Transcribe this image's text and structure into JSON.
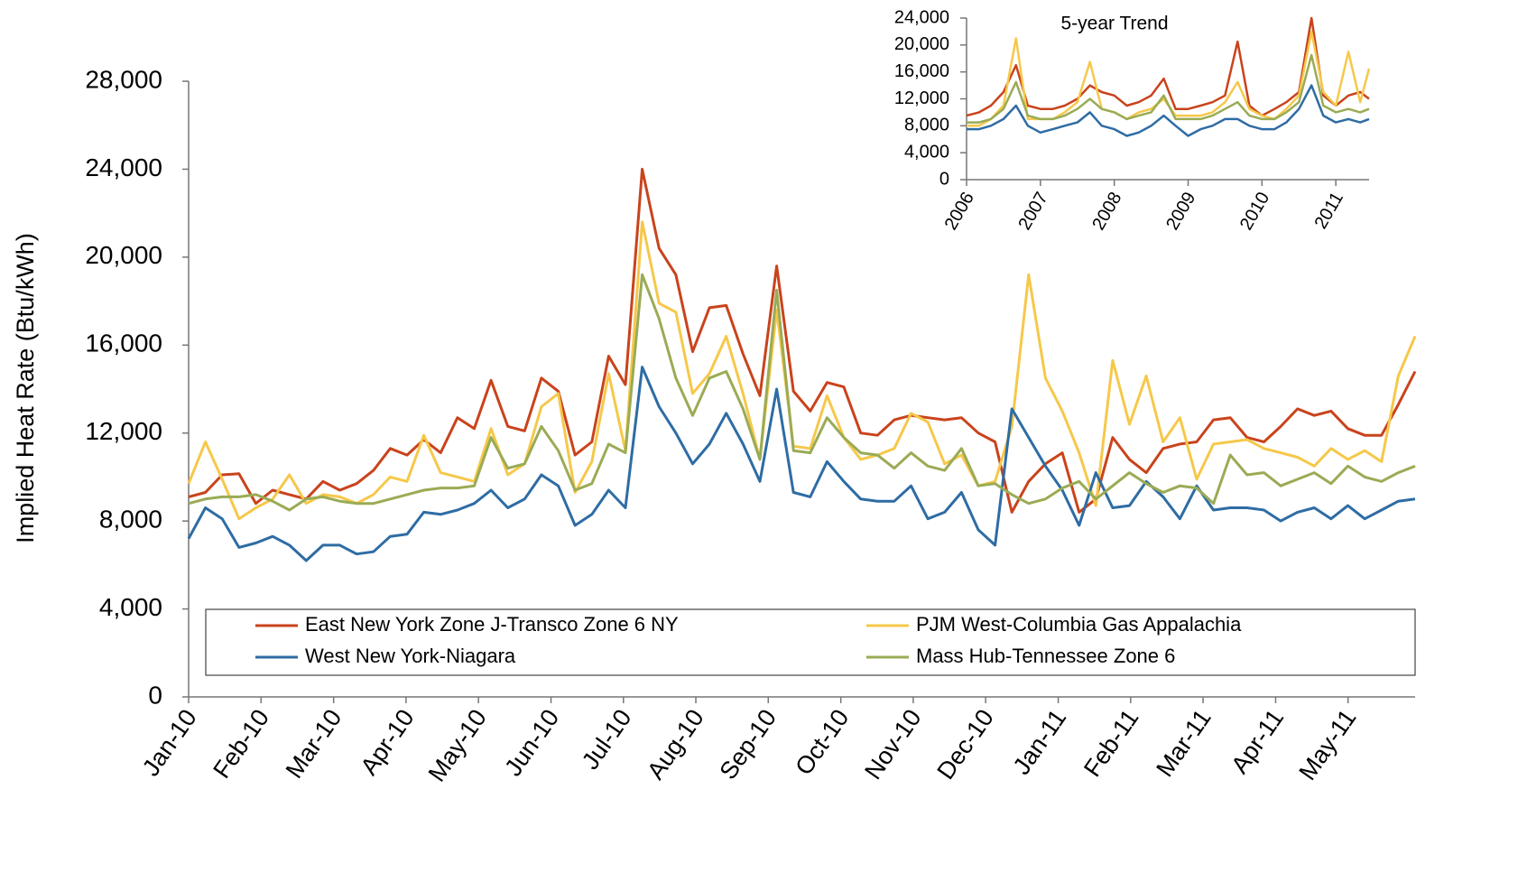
{
  "chart_data": [
    {
      "type": "line",
      "y_label": "Implied Heat Rate (Btu/kWh)",
      "x": [
        0,
        1,
        2,
        3,
        4,
        5,
        6,
        7,
        8,
        9,
        10,
        11,
        12,
        13,
        14,
        15,
        16,
        17,
        18,
        19,
        20,
        21,
        22,
        23,
        24,
        25,
        26,
        27,
        28,
        29,
        30,
        31,
        32,
        33,
        34,
        35,
        36,
        37,
        38,
        39,
        40,
        41,
        42,
        43,
        44,
        45,
        46,
        47,
        48,
        49,
        50,
        51,
        52,
        53,
        54,
        55,
        56,
        57,
        58,
        59,
        60,
        61,
        62,
        63,
        64,
        65,
        66,
        67,
        68,
        69,
        70,
        71,
        72,
        73
      ],
      "xlim": [
        0,
        73
      ],
      "xticks": [
        {
          "value": 0,
          "label": "Jan-10"
        },
        {
          "value": 4.31,
          "label": "Feb-10"
        },
        {
          "value": 8.63,
          "label": "Mar-10"
        },
        {
          "value": 12.94,
          "label": "Apr-10"
        },
        {
          "value": 17.25,
          "label": "May-10"
        },
        {
          "value": 21.57,
          "label": "Jun-10"
        },
        {
          "value": 25.88,
          "label": "Jul-10"
        },
        {
          "value": 30.19,
          "label": "Aug-10"
        },
        {
          "value": 34.5,
          "label": "Sep-10"
        },
        {
          "value": 38.82,
          "label": "Oct-10"
        },
        {
          "value": 43.13,
          "label": "Nov-10"
        },
        {
          "value": 47.44,
          "label": "Dec-10"
        },
        {
          "value": 51.76,
          "label": "Jan-11"
        },
        {
          "value": 56.07,
          "label": "Feb-11"
        },
        {
          "value": 60.38,
          "label": "Mar-11"
        },
        {
          "value": 64.7,
          "label": "Apr-11"
        },
        {
          "value": 69.01,
          "label": "May-11"
        }
      ],
      "ylim": [
        0,
        28000
      ],
      "yticks": [
        0,
        {
          "value": 4000,
          "label": "4,000"
        },
        {
          "value": 8000,
          "label": "8,000"
        },
        {
          "value": 12000,
          "label": "12,000"
        },
        {
          "value": 16000,
          "label": "16,000"
        },
        {
          "value": 20000,
          "label": "20,000"
        },
        {
          "value": 24000,
          "label": "24,000"
        },
        {
          "value": 28000,
          "label": "28,000"
        }
      ],
      "legend": true,
      "series": [
        {
          "name": "East New York Zone J-Transco Zone 6 NY",
          "color": "#c9431c",
          "values": [
            9100,
            9300,
            10100,
            10150,
            8800,
            9400,
            9200,
            9000,
            9800,
            9400,
            9700,
            10300,
            11300,
            11000,
            11700,
            11100,
            12700,
            12200,
            14400,
            12300,
            12100,
            14500,
            13900,
            11000,
            11600,
            15500,
            14200,
            24000,
            20400,
            19200,
            15700,
            17700,
            17800,
            15600,
            13700,
            19600,
            13900,
            13000,
            14300,
            14100,
            12000,
            11900,
            12600,
            12800,
            12700,
            12600,
            12700,
            12000,
            11600,
            8400,
            9800,
            10600,
            11100,
            8400,
            9000,
            11800,
            10800,
            10200,
            11300,
            11500,
            11600,
            12600,
            12700,
            11800,
            11600,
            12300,
            13100,
            12800,
            13000,
            12200,
            11900,
            11900,
            13300,
            14800
          ]
        },
        {
          "name": "PJM West-Columbia Gas Appalachia",
          "color": "#f6c84a",
          "values": [
            9700,
            11600,
            9900,
            8100,
            8600,
            9000,
            10100,
            8800,
            9200,
            9100,
            8800,
            9200,
            10000,
            9800,
            11900,
            10200,
            10000,
            9800,
            12200,
            10100,
            10600,
            13200,
            13800,
            9300,
            10700,
            14700,
            11200,
            21600,
            17900,
            17500,
            13800,
            14700,
            16400,
            13800,
            10800,
            17600,
            11400,
            11300,
            13700,
            11800,
            10800,
            11000,
            11300,
            12900,
            12500,
            10600,
            11000,
            9600,
            9800,
            12300,
            19200,
            14500,
            13000,
            11100,
            8700,
            15300,
            12400,
            14600,
            11600,
            12700,
            9900,
            11500,
            11600,
            11700,
            11300,
            11100,
            10900,
            10500,
            11300,
            10800,
            11200,
            10700,
            14600,
            16400
          ]
        },
        {
          "name": "West New York-Niagara",
          "color": "#2e6ca4",
          "values": [
            7200,
            8600,
            8100,
            6800,
            7000,
            7300,
            6900,
            6200,
            6900,
            6900,
            6500,
            6600,
            7300,
            7400,
            8400,
            8300,
            8500,
            8800,
            9400,
            8600,
            9000,
            10100,
            9600,
            7800,
            8300,
            9400,
            8600,
            15000,
            13200,
            12000,
            10600,
            11500,
            12900,
            11500,
            9800,
            14000,
            9300,
            9100,
            10700,
            9800,
            9000,
            8900,
            8900,
            9600,
            8100,
            8400,
            9300,
            7600,
            6900,
            13100,
            11800,
            10500,
            9400,
            7800,
            10200,
            8600,
            8700,
            9800,
            9100,
            8100,
            9600,
            8500,
            8600,
            8600,
            8500,
            8000,
            8400,
            8600,
            8100,
            8700,
            8100,
            8500,
            8900,
            9000
          ]
        },
        {
          "name": "Mass Hub-Tennessee Zone 6",
          "color": "#9aab55",
          "values": [
            8800,
            9000,
            9100,
            9100,
            9200,
            8900,
            8500,
            9000,
            9100,
            8900,
            8800,
            8800,
            9000,
            9200,
            9400,
            9500,
            9500,
            9600,
            11800,
            10400,
            10600,
            12300,
            11200,
            9400,
            9700,
            11500,
            11100,
            19200,
            17200,
            14500,
            12800,
            14500,
            14800,
            13100,
            10800,
            18500,
            11200,
            11100,
            12700,
            11800,
            11100,
            11000,
            10400,
            11100,
            10500,
            10300,
            11300,
            9600,
            9700,
            9200,
            8800,
            9000,
            9500,
            9800,
            9000,
            9600,
            10200,
            9700,
            9300,
            9600,
            9500,
            8800,
            11000,
            10100,
            10200,
            9600,
            9900,
            10200,
            9700,
            10500,
            10000,
            9800,
            10200,
            10500
          ]
        }
      ]
    },
    {
      "type": "line",
      "title": "5-year Trend",
      "x": [
        2006,
        2006.17,
        2006.33,
        2006.5,
        2006.67,
        2006.83,
        2007,
        2007.17,
        2007.33,
        2007.5,
        2007.67,
        2007.83,
        2008,
        2008.17,
        2008.33,
        2008.5,
        2008.67,
        2008.83,
        2009,
        2009.17,
        2009.33,
        2009.5,
        2009.67,
        2009.83,
        2010,
        2010.17,
        2010.33,
        2010.5,
        2010.67,
        2010.83,
        2011,
        2011.17,
        2011.33,
        2011.45
      ],
      "xlim": [
        2006,
        2011.45
      ],
      "xticks": [
        2006,
        2007,
        2008,
        2009,
        2010,
        2011
      ],
      "ylim": [
        0,
        24000
      ],
      "yticks": [
        0,
        {
          "value": 4000,
          "label": "4,000"
        },
        {
          "value": 8000,
          "label": "8,000"
        },
        {
          "value": 12000,
          "label": "12,000"
        },
        {
          "value": 16000,
          "label": "16,000"
        },
        {
          "value": 20000,
          "label": "20,000"
        },
        {
          "value": 24000,
          "label": "24,000"
        }
      ],
      "legend": false,
      "series": [
        {
          "color": "#c9431c",
          "values": [
            9500,
            10000,
            11000,
            13000,
            17000,
            11000,
            10500,
            10500,
            11000,
            12000,
            14000,
            13000,
            12500,
            11000,
            11500,
            12500,
            15000,
            10500,
            10500,
            11000,
            11500,
            12500,
            20500,
            11000,
            9500,
            10500,
            11500,
            13000,
            24000,
            12500,
            11000,
            12500,
            13000,
            12000
          ]
        },
        {
          "color": "#f6c84a",
          "values": [
            8000,
            8000,
            9000,
            11000,
            21000,
            9000,
            9000,
            9000,
            10000,
            11500,
            17500,
            10500,
            10000,
            9000,
            10000,
            10500,
            12000,
            9500,
            9500,
            9500,
            10000,
            11500,
            14500,
            10500,
            9500,
            9000,
            10500,
            12500,
            22000,
            13000,
            11000,
            19000,
            11500,
            16500
          ]
        },
        {
          "color": "#2e6ca4",
          "values": [
            7500,
            7500,
            8000,
            9000,
            11000,
            8000,
            7000,
            7500,
            8000,
            8500,
            10000,
            8000,
            7500,
            6500,
            7000,
            8000,
            9500,
            8000,
            6500,
            7500,
            8000,
            9000,
            9000,
            8000,
            7500,
            7500,
            8500,
            10500,
            14000,
            9500,
            8500,
            9000,
            8500,
            9000
          ]
        },
        {
          "color": "#9aab55",
          "values": [
            8500,
            8500,
            9000,
            10500,
            14500,
            9500,
            9000,
            9000,
            9500,
            10500,
            12000,
            10500,
            10000,
            9000,
            9500,
            10000,
            12500,
            9000,
            9000,
            9000,
            9500,
            10500,
            11500,
            9500,
            9000,
            9000,
            10000,
            11500,
            18500,
            11000,
            10000,
            10500,
            10000,
            10500
          ]
        }
      ]
    }
  ]
}
